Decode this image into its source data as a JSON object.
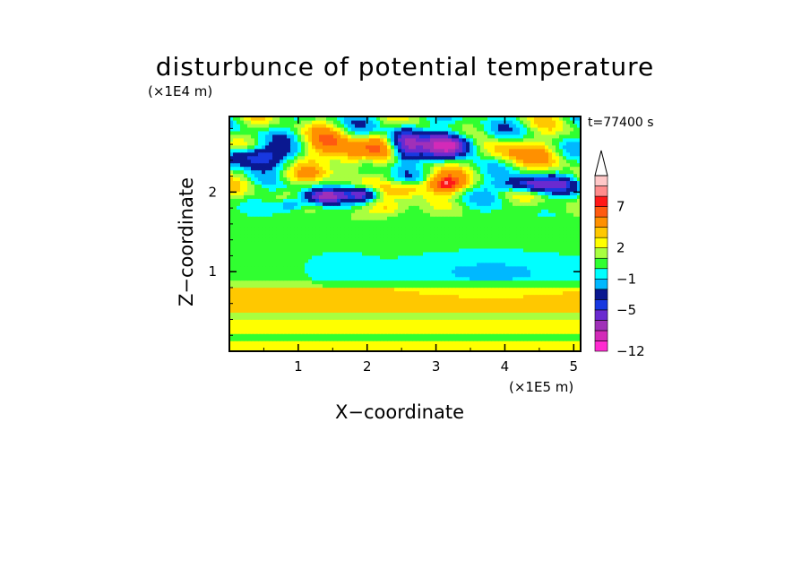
{
  "chart_data": {
    "type": "heatmap",
    "title": "disturbunce of potential temperature",
    "xlabel": "X−coordinate",
    "ylabel": "Z−coordinate",
    "x_unit": "(×1E5 m)",
    "y_unit": "(×1E4 m)",
    "annotation": "t=77400 s",
    "xlim": [
      0,
      5.1
    ],
    "ylim": [
      0,
      2.95
    ],
    "x_ticks": [
      1,
      2,
      3,
      4,
      5
    ],
    "x_tick_labels": [
      "1",
      "2",
      "3",
      "4",
      "5"
    ],
    "y_ticks": [
      1,
      2
    ],
    "y_tick_labels": [
      "1",
      "2"
    ],
    "colorbar": {
      "levels": [
        -12,
        -11,
        -9,
        -7,
        -5,
        -4,
        -2,
        -1,
        0,
        1,
        2,
        3,
        4,
        6,
        7,
        8,
        9
      ],
      "colors": [
        "#ff2bd0",
        "#d32ab8",
        "#a030b8",
        "#6a2ad0",
        "#1838e0",
        "#0a1890",
        "#00b8ff",
        "#00ffff",
        "#30ff30",
        "#a8ff40",
        "#ffff00",
        "#ffc800",
        "#ff9000",
        "#ff5a10",
        "#ff1818",
        "#ff8c8c",
        "#ffc8c8"
      ],
      "labeled_levels": [
        "−12",
        "−5",
        "−1",
        "2",
        "7"
      ],
      "extend": "max"
    },
    "approx_features": [
      {
        "x": 0.35,
        "z": 2.45,
        "value": -6
      },
      {
        "x": 1.4,
        "z": 2.6,
        "value": 5
      },
      {
        "x": 1.75,
        "z": 2.5,
        "value": 7
      },
      {
        "x": 1.4,
        "z": 1.95,
        "value": -6
      },
      {
        "x": 1.95,
        "z": 2.0,
        "value": -6
      },
      {
        "x": 2.55,
        "z": 2.6,
        "value": -6
      },
      {
        "x": 2.6,
        "z": 2.05,
        "value": 5
      },
      {
        "x": 3.1,
        "z": 2.1,
        "value": 8
      },
      {
        "x": 3.2,
        "z": 2.6,
        "value": -10
      },
      {
        "x": 4.4,
        "z": 2.1,
        "value": -6
      },
      {
        "x": 4.2,
        "z": 1.0,
        "value": -1
      },
      {
        "x": 2.5,
        "z": 0.65,
        "value": 3
      },
      {
        "x": 2.5,
        "z": 0.3,
        "value": 2
      }
    ]
  }
}
